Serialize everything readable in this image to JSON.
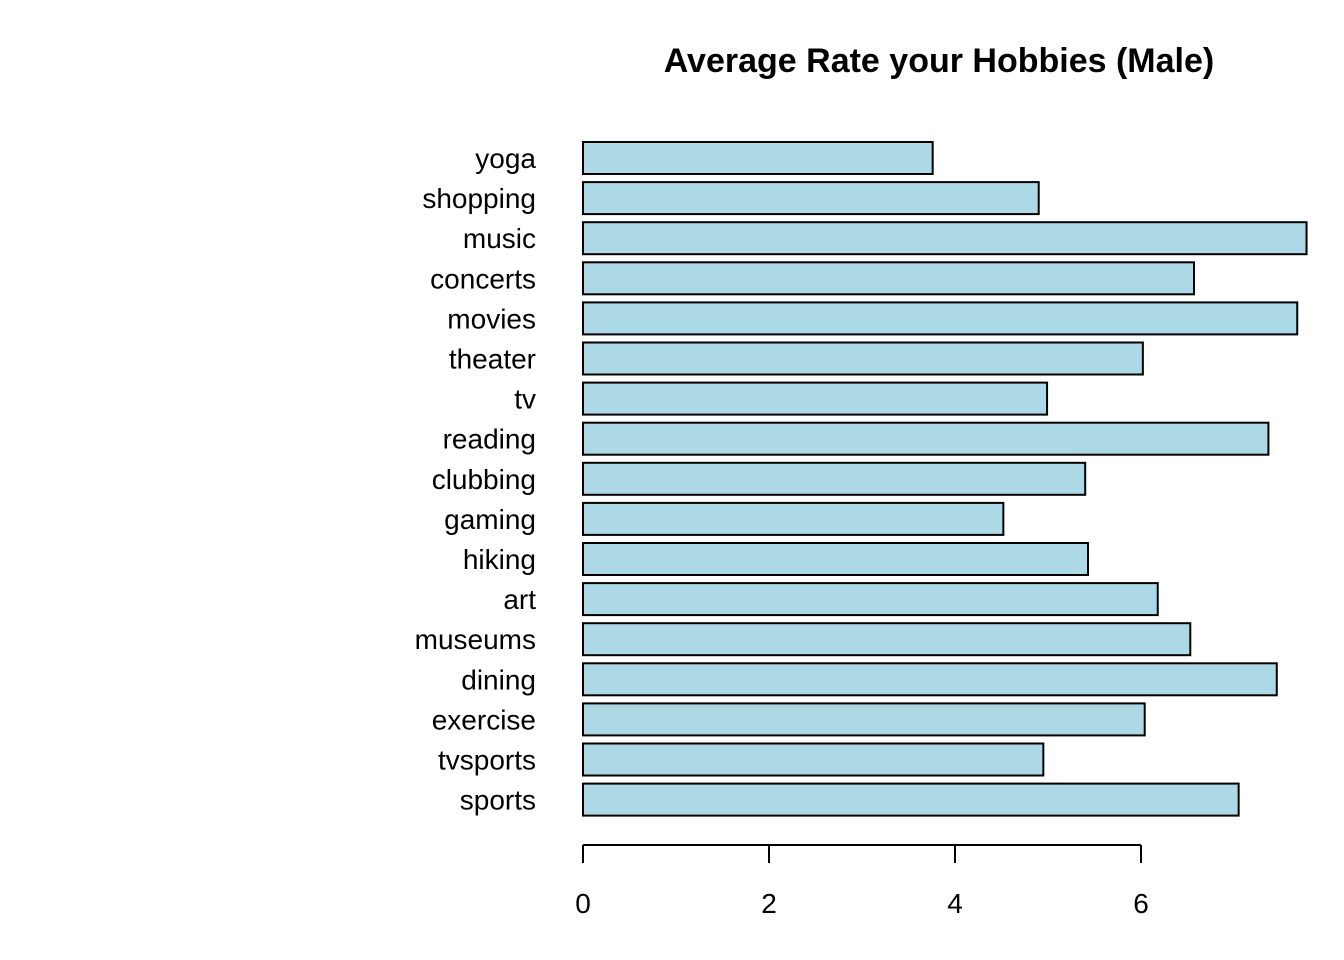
{
  "chart_data": {
    "type": "bar",
    "orientation": "horizontal",
    "title": "Average Rate your Hobbies (Male)",
    "categories": [
      "sports",
      "tvsports",
      "exercise",
      "dining",
      "museums",
      "art",
      "hiking",
      "gaming",
      "clubbing",
      "reading",
      "tv",
      "theater",
      "movies",
      "concerts",
      "music",
      "shopping",
      "yoga"
    ],
    "values": [
      7.05,
      4.95,
      6.04,
      7.46,
      6.53,
      6.18,
      5.43,
      4.52,
      5.4,
      7.37,
      4.99,
      6.02,
      7.68,
      6.57,
      7.78,
      4.9,
      3.76
    ],
    "xlim": [
      0,
      7.8
    ],
    "xticks": [
      0,
      2,
      4,
      6
    ],
    "xlabel": "",
    "ylabel": "",
    "bar_color": "#add8e6",
    "bar_border_color": "#000000",
    "grid": false,
    "legend": "none"
  }
}
